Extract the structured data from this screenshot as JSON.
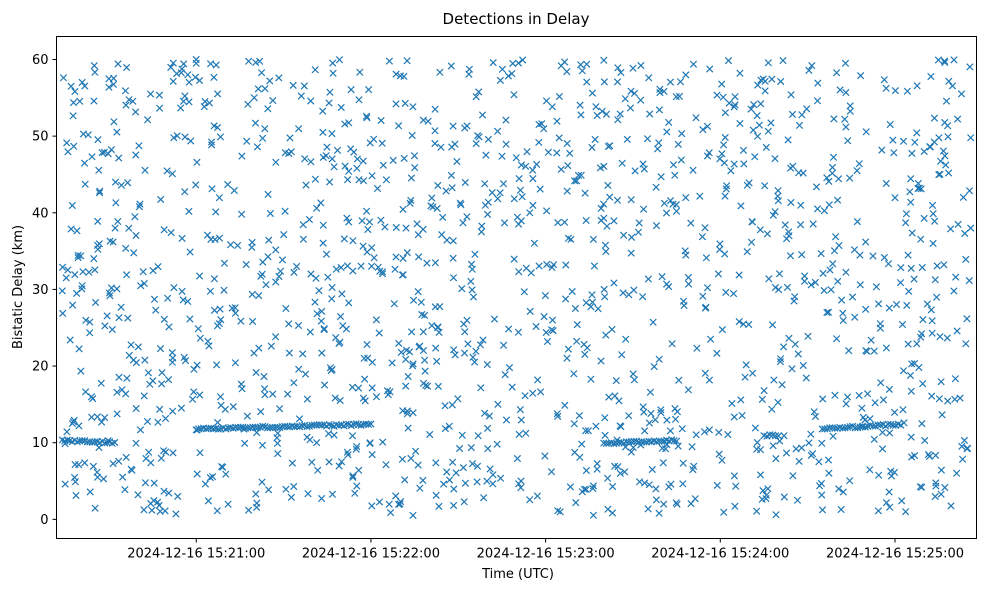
{
  "chart_data": {
    "type": "scatter",
    "title": "Detections in Delay",
    "xlabel": "Time (UTC)",
    "ylabel": "Bistatic Delay (km)",
    "marker": "x",
    "color": "#1f77b4",
    "xlim": [
      "2024-12-16 15:20:12",
      "2024-12-16 15:25:28"
    ],
    "ylim": [
      -2.5,
      63
    ],
    "xticks": [
      "2024-12-16 15:21:00",
      "2024-12-16 15:22:00",
      "2024-12-16 15:23:00",
      "2024-12-16 15:24:00",
      "2024-12-16 15:25:00"
    ],
    "yticks": [
      0,
      10,
      20,
      30,
      40,
      50,
      60
    ],
    "grid": false,
    "data_range": {
      "x_start": "2024-12-16 15:20:14",
      "x_end": "2024-12-16 15:25:26",
      "y_min": 0.5,
      "y_max": 60
    },
    "tracks": [
      {
        "x_start": "2024-12-16 15:20:14",
        "x_end": "2024-12-16 15:20:32",
        "y_start": 10.3,
        "y_end": 10.0
      },
      {
        "x_start": "2024-12-16 15:21:00",
        "x_end": "2024-12-16 15:22:00",
        "y_start": 11.8,
        "y_end": 12.4
      },
      {
        "x_start": "2024-12-16 15:23:20",
        "x_end": "2024-12-16 15:23:45",
        "y_start": 9.9,
        "y_end": 10.3
      },
      {
        "x_start": "2024-12-16 15:24:15",
        "x_end": "2024-12-16 15:24:20",
        "y_start": 10.9,
        "y_end": 11.0
      },
      {
        "x_start": "2024-12-16 15:24:35",
        "x_end": "2024-12-16 15:25:02",
        "y_start": 11.8,
        "y_end": 12.4
      }
    ],
    "points_sample": [
      [
        "2024-12-16 15:20:14",
        29.8
      ],
      [
        "2024-12-16 15:20:15",
        4.6
      ],
      [
        "2024-12-16 15:20:17",
        56.5
      ],
      [
        "2024-12-16 15:20:25",
        59.2
      ],
      [
        "2024-12-16 15:20:30",
        57.5
      ],
      [
        "2024-12-16 15:20:40",
        3.2
      ],
      [
        "2024-12-16 15:20:53",
        0.7
      ],
      [
        "2024-12-16 15:21:00",
        60.0
      ],
      [
        "2024-12-16 15:21:47",
        58.2
      ],
      [
        "2024-12-16 15:22:10",
        2.0
      ],
      [
        "2024-12-16 15:22:42",
        59.6
      ],
      [
        "2024-12-16 15:23:05",
        1.0
      ],
      [
        "2024-12-16 15:23:20",
        59.9
      ],
      [
        "2024-12-16 15:24:05",
        1.7
      ],
      [
        "2024-12-16 15:24:43",
        59.5
      ],
      [
        "2024-12-16 15:25:17",
        59.8
      ],
      [
        "2024-12-16 15:25:26",
        38.0
      ],
      [
        "2024-12-16 15:25:26",
        49.8
      ]
    ]
  }
}
